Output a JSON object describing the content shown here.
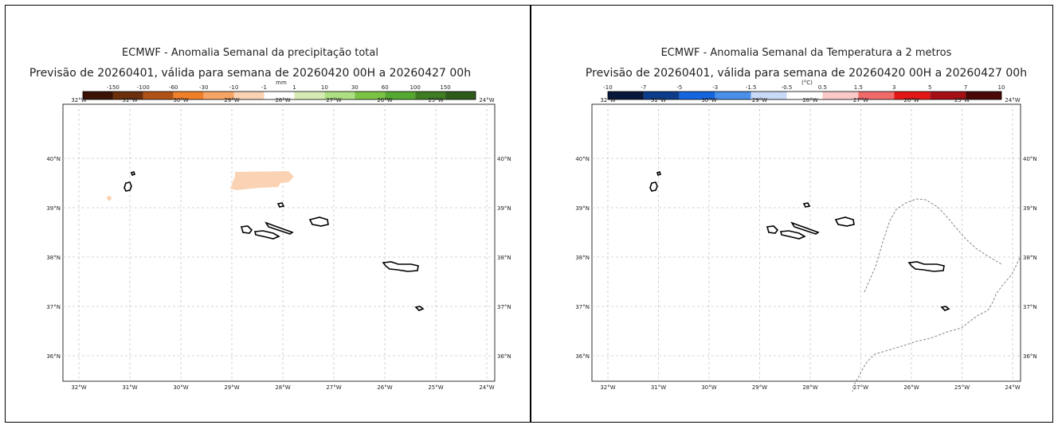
{
  "maps": [
    {
      "title": "ECMWF - Anomalia Semanal da precipitação total",
      "subtitle": "Previsão de 20260401, válida para semana de 20260420 00H a 20260427 00h",
      "colorbar": {
        "unit": "mm",
        "ticks": [
          "-150",
          "-100",
          "-60",
          "-30",
          "-10",
          "-1",
          "1",
          "10",
          "30",
          "60",
          "100",
          "150"
        ],
        "colors": [
          "#3a1206",
          "#6b2f0c",
          "#b05216",
          "#f07f2a",
          "#f6a565",
          "#fad3b4",
          "#ffffff",
          "#d6ebb4",
          "#aee083",
          "#7cc244",
          "#55a830",
          "#3f7d23",
          "#2e5a1a"
        ]
      },
      "x_ticks": [
        "32°W",
        "31°W",
        "30°W",
        "29°W",
        "28°W",
        "27°W",
        "26°W",
        "25°W",
        "24°W"
      ],
      "y_ticks": [
        "40°N",
        "39°N",
        "38°N",
        "37°N",
        "36°N"
      ],
      "anomaly_color": "#fad3b4"
    },
    {
      "title": "ECMWF - Anomalia Semanal da Temperatura a 2 metros",
      "subtitle": "Previsão de 20260401, válida para semana de 20260420 00H a 20260427 00h",
      "colorbar": {
        "unit": "(°C)",
        "ticks": [
          "-10",
          "-7",
          "-5",
          "-3",
          "-1.5",
          "-0.5",
          "0.5",
          "1.5",
          "3",
          "5",
          "7",
          "10"
        ],
        "colors": [
          "#08183a",
          "#0c3c8a",
          "#1565e0",
          "#4a90e8",
          "#c8daf5",
          "#ffffff",
          "#fbc8c8",
          "#f06a6a",
          "#e51616",
          "#a50f15",
          "#4a0808"
        ]
      },
      "x_ticks": [
        "32°W",
        "31°W",
        "30°W",
        "29°W",
        "28°W",
        "27°W",
        "26°W",
        "25°W",
        "24°W"
      ],
      "y_ticks": [
        "40°N",
        "39°N",
        "38°N",
        "37°N",
        "36°N"
      ]
    }
  ]
}
